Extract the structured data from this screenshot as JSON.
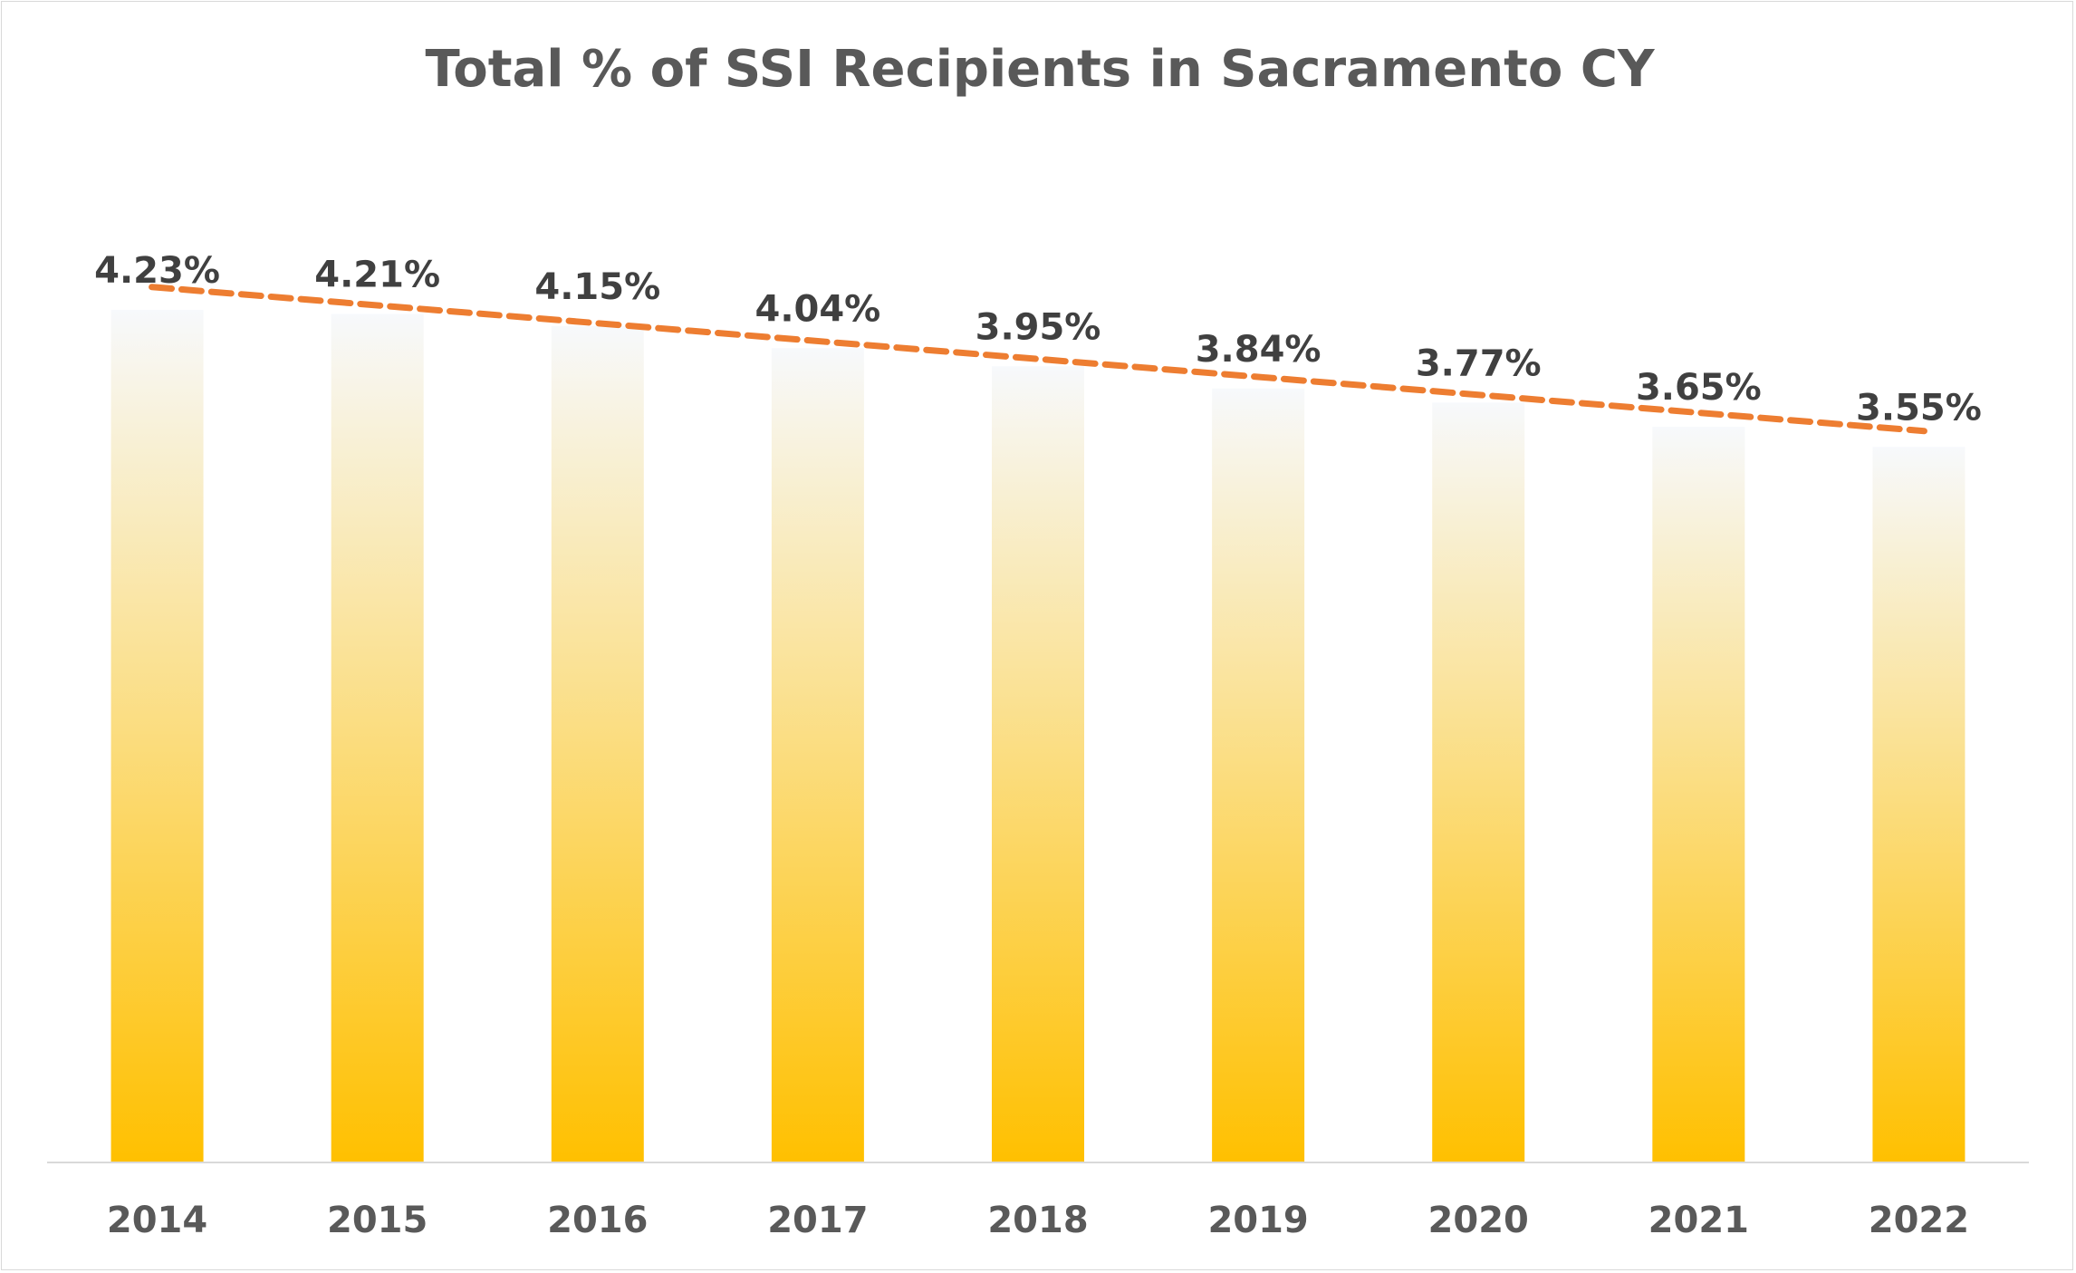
{
  "chart_data": {
    "type": "bar",
    "title": "Total % of SSI Recipients in Sacramento CY",
    "categories": [
      "2014",
      "2015",
      "2016",
      "2017",
      "2018",
      "2019",
      "2020",
      "2021",
      "2022"
    ],
    "values": [
      4.23,
      4.21,
      4.15,
      4.04,
      3.95,
      3.84,
      3.77,
      3.65,
      3.55
    ],
    "data_labels": [
      "4.23%",
      "4.21%",
      "4.15%",
      "4.04%",
      "3.95%",
      "3.84%",
      "3.77%",
      "3.65%",
      "3.55%"
    ],
    "value_unit": "%",
    "ylim": [
      0,
      4.23
    ],
    "grid": false,
    "legend": "none",
    "trendline": {
      "type": "linear",
      "style": "dashed",
      "color": "#ED7D31"
    },
    "colors": {
      "bar_bottom": "#FFC000",
      "bar_top": "#F7F9FC",
      "trendline": "#ED7D31",
      "axis": "#D9D9D9",
      "title": "#595959",
      "labels": "#404040"
    }
  }
}
